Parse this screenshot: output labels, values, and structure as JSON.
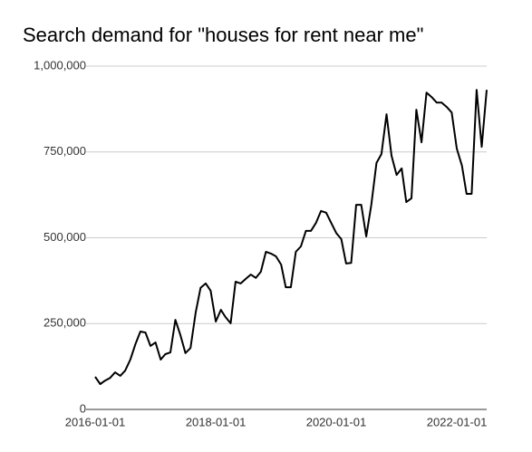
{
  "chart_data": {
    "type": "line",
    "title": "Search demand for \"houses for rent near me\"",
    "x": [
      "2016-01-01",
      "2016-02-01",
      "2016-03-01",
      "2016-04-01",
      "2016-05-01",
      "2016-06-01",
      "2016-07-01",
      "2016-08-01",
      "2016-09-01",
      "2016-10-01",
      "2016-11-01",
      "2016-12-01",
      "2017-01-01",
      "2017-02-01",
      "2017-03-01",
      "2017-04-01",
      "2017-05-01",
      "2017-06-01",
      "2017-07-01",
      "2017-08-01",
      "2017-09-01",
      "2017-10-01",
      "2017-11-01",
      "2017-12-01",
      "2018-01-01",
      "2018-02-01",
      "2018-03-01",
      "2018-04-01",
      "2018-05-01",
      "2018-06-01",
      "2018-07-01",
      "2018-08-01",
      "2018-09-01",
      "2018-10-01",
      "2018-11-01",
      "2018-12-01",
      "2019-01-01",
      "2019-02-01",
      "2019-03-01",
      "2019-04-01",
      "2019-05-01",
      "2019-06-01",
      "2019-07-01",
      "2019-08-01",
      "2019-09-01",
      "2019-10-01",
      "2019-11-01",
      "2019-12-01",
      "2020-01-01",
      "2020-02-01",
      "2020-03-01",
      "2020-04-01",
      "2020-05-01",
      "2020-06-01",
      "2020-07-01",
      "2020-08-01",
      "2020-09-01",
      "2020-10-01",
      "2020-11-01",
      "2020-12-01",
      "2021-01-01",
      "2021-02-01",
      "2021-03-01",
      "2021-04-01",
      "2021-05-01",
      "2021-06-01",
      "2021-07-01",
      "2021-08-01",
      "2021-09-01",
      "2021-10-01",
      "2021-11-01",
      "2021-12-01",
      "2022-01-01",
      "2022-02-01",
      "2022-03-01",
      "2022-04-01",
      "2022-05-01",
      "2022-06-01",
      "2022-07-01"
    ],
    "series": [
      {
        "name": "Search demand",
        "color": "#000000",
        "values": [
          95000,
          74000,
          84000,
          92000,
          108000,
          98000,
          113000,
          145000,
          190000,
          227000,
          224000,
          185000,
          195000,
          145000,
          161000,
          166000,
          261000,
          216000,
          164000,
          179000,
          282000,
          354000,
          367000,
          346000,
          256000,
          290000,
          269000,
          251000,
          372000,
          367000,
          380000,
          393000,
          383000,
          401000,
          459000,
          454000,
          446000,
          422000,
          356000,
          356000,
          459000,
          475000,
          520000,
          520000,
          544000,
          578000,
          573000,
          544000,
          514000,
          496000,
          425000,
          427000,
          596000,
          596000,
          504000,
          596000,
          718000,
          744000,
          860000,
          739000,
          683000,
          702000,
          604000,
          615000,
          873000,
          778000,
          923000,
          910000,
          894000,
          894000,
          881000,
          865000,
          760000,
          710000,
          628000,
          628000,
          931000,
          765000,
          931000
        ]
      }
    ],
    "xlim": [
      "2016-01-01",
      "2022-07-01"
    ],
    "xticks": [
      "2016-01-01",
      "2018-01-01",
      "2020-01-01",
      "2022-01-01"
    ],
    "ylim": [
      0,
      1000000
    ],
    "yticks": [
      0,
      {
        "value": 250000,
        "label": "250,000"
      },
      {
        "value": 500000,
        "label": "500,000"
      },
      {
        "value": 750000,
        "label": "750,000"
      },
      {
        "value": 1000000,
        "label": "1,000,000"
      }
    ],
    "grid": true
  }
}
